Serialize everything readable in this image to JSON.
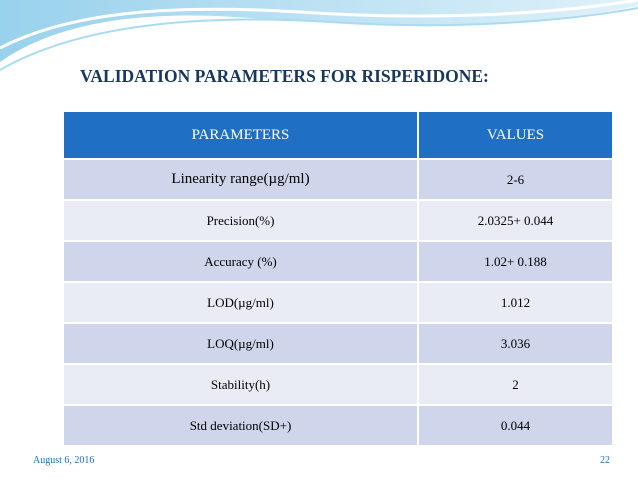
{
  "header": {
    "title": "VALIDATION PARAMETERS FOR RISPERIDONE:"
  },
  "table": {
    "columns": [
      "PARAMETERS",
      "VALUES"
    ],
    "rows": [
      [
        "Linearity range(µg/ml)",
        "2-6"
      ],
      [
        "Precision(%)",
        "2.0325+  0.044"
      ],
      [
        "Accuracy (%)",
        "1.02+ 0.188"
      ],
      [
        "LOD(µg/ml)",
        "1.012"
      ],
      [
        "LOQ(µg/ml)",
        "3.036"
      ],
      [
        "Stability(h)",
        "2"
      ],
      [
        "Std deviation(SD+)",
        "0.044"
      ]
    ]
  },
  "footer": {
    "date": "August 6, 2016",
    "page": "22"
  }
}
